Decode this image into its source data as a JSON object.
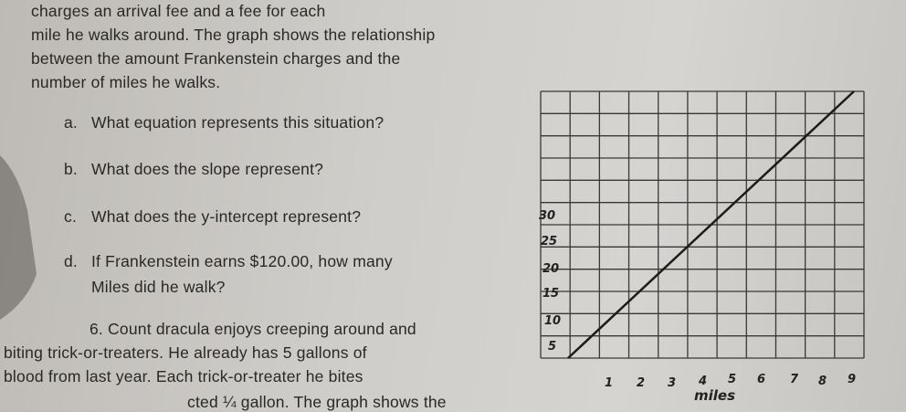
{
  "intro": [
    "charges an arrival fee and a fee for each",
    "mile he walks around.  The graph shows the relationship",
    "between the amount Frankenstein charges and the",
    "number of miles he walks."
  ],
  "questions": [
    {
      "label": "a.",
      "text": "What equation represents this situation?"
    },
    {
      "label": "b.",
      "text": "What does the slope represent?"
    },
    {
      "label": "c.",
      "text": "What does the y-intercept represent?"
    },
    {
      "label": "d.",
      "text": "If Frankenstein earns $120.00, how many"
    }
  ],
  "question_d_continued": "Miles did he walk?",
  "problem_6": [
    "6.  Count dracula enjoys creeping around and",
    "biting trick-or-treaters. He already has 5 gallons of",
    "blood from last year.  Each trick-or-treater he bites",
    "cted ¼ gallon. The graph shows the"
  ],
  "graph": {
    "y_labels": [
      "30",
      "25",
      "20",
      "15",
      "10",
      "5"
    ],
    "x_labels": [
      "1",
      "2",
      "3",
      "4",
      "5",
      "6",
      "7",
      "8",
      "9"
    ],
    "x_title": "miles"
  }
}
